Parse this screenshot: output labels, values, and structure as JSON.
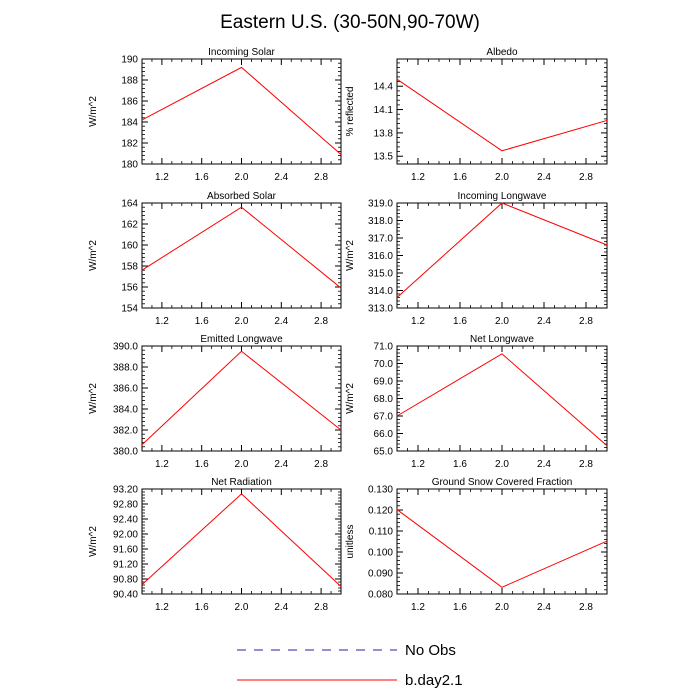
{
  "figure": {
    "title": "Eastern U.S. (30-50N,90-70W)"
  },
  "legend": {
    "items": [
      {
        "label": "No Obs",
        "color": "#2222aa",
        "dash": true
      },
      {
        "label": "b.day2.1",
        "color": "#ff0000",
        "dash": false
      }
    ]
  },
  "chart_data": [
    {
      "type": "line",
      "title": "Incoming Solar",
      "ylabel": "W/m^2",
      "xlabel": "",
      "xlim": [
        1,
        3
      ],
      "ylim": [
        180,
        190
      ],
      "x_ticks": [
        1.2,
        1.6,
        2.0,
        2.4,
        2.8
      ],
      "x_tick_labels": [
        "1.2",
        "1.6",
        "2.0",
        "2.4",
        "2.8"
      ],
      "y_ticks": [
        180,
        182,
        184,
        186,
        188,
        190
      ],
      "y_tick_labels": [
        "180",
        "182",
        "184",
        "186",
        "188",
        "190"
      ],
      "series": [
        {
          "x": [
            1,
            2,
            3
          ],
          "y": [
            184.2,
            189.2,
            180.9
          ],
          "color": "#ff0000"
        }
      ]
    },
    {
      "type": "line",
      "title": "Albedo",
      "ylabel": "% reflected",
      "xlabel": "",
      "xlim": [
        1,
        3
      ],
      "ylim": [
        13.4,
        14.75
      ],
      "x_ticks": [
        1.2,
        1.6,
        2.0,
        2.4,
        2.8
      ],
      "x_tick_labels": [
        "1.2",
        "1.6",
        "2.0",
        "2.4",
        "2.8"
      ],
      "y_ticks": [
        13.5,
        13.8,
        14.1,
        14.4
      ],
      "y_tick_labels": [
        "13.5",
        "13.8",
        "14.1",
        "14.4"
      ],
      "series": [
        {
          "x": [
            1,
            2,
            3
          ],
          "y": [
            14.49,
            13.57,
            13.96
          ],
          "color": "#ff0000"
        }
      ]
    },
    {
      "type": "line",
      "title": "Absorbed Solar",
      "ylabel": "W/m^2",
      "xlabel": "",
      "xlim": [
        1,
        3
      ],
      "ylim": [
        154,
        164
      ],
      "x_ticks": [
        1.2,
        1.6,
        2.0,
        2.4,
        2.8
      ],
      "x_tick_labels": [
        "1.2",
        "1.6",
        "2.0",
        "2.4",
        "2.8"
      ],
      "y_ticks": [
        154,
        156,
        158,
        160,
        162,
        164
      ],
      "y_tick_labels": [
        "154",
        "156",
        "158",
        "160",
        "162",
        "164"
      ],
      "series": [
        {
          "x": [
            1,
            2,
            3
          ],
          "y": [
            157.6,
            163.6,
            155.9
          ],
          "color": "#ff0000"
        }
      ]
    },
    {
      "type": "line",
      "title": "Incoming Longwave",
      "ylabel": "W/m^2",
      "xlabel": "",
      "xlim": [
        1,
        3
      ],
      "ylim": [
        313,
        319
      ],
      "x_ticks": [
        1.2,
        1.6,
        2.0,
        2.4,
        2.8
      ],
      "x_tick_labels": [
        "1.2",
        "1.6",
        "2.0",
        "2.4",
        "2.8"
      ],
      "y_ticks": [
        313,
        314,
        315,
        316,
        317,
        318,
        319
      ],
      "y_tick_labels": [
        "313.0",
        "314.0",
        "315.0",
        "316.0",
        "317.0",
        "318.0",
        "319.0"
      ],
      "series": [
        {
          "x": [
            1,
            2,
            3
          ],
          "y": [
            313.6,
            319.0,
            316.6
          ],
          "color": "#ff0000"
        }
      ]
    },
    {
      "type": "line",
      "title": "Emitted Longwave",
      "ylabel": "W/m^2",
      "xlabel": "",
      "xlim": [
        1,
        3
      ],
      "ylim": [
        380,
        390
      ],
      "x_ticks": [
        1.2,
        1.6,
        2.0,
        2.4,
        2.8
      ],
      "x_tick_labels": [
        "1.2",
        "1.6",
        "2.0",
        "2.4",
        "2.8"
      ],
      "y_ticks": [
        380,
        382,
        384,
        386,
        388,
        390
      ],
      "y_tick_labels": [
        "380.0",
        "382.0",
        "384.0",
        "386.0",
        "388.0",
        "390.0"
      ],
      "series": [
        {
          "x": [
            1,
            2,
            3
          ],
          "y": [
            380.6,
            389.5,
            382.0
          ],
          "color": "#ff0000"
        }
      ]
    },
    {
      "type": "line",
      "title": "Net Longwave",
      "ylabel": "W/m^2",
      "xlabel": "",
      "xlim": [
        1,
        3
      ],
      "ylim": [
        65,
        71
      ],
      "x_ticks": [
        1.2,
        1.6,
        2.0,
        2.4,
        2.8
      ],
      "x_tick_labels": [
        "1.2",
        "1.6",
        "2.0",
        "2.4",
        "2.8"
      ],
      "y_ticks": [
        65,
        66,
        67,
        68,
        69,
        70,
        71
      ],
      "y_tick_labels": [
        "65.0",
        "66.0",
        "67.0",
        "68.0",
        "69.0",
        "70.0",
        "71.0"
      ],
      "series": [
        {
          "x": [
            1,
            2,
            3
          ],
          "y": [
            67.0,
            70.55,
            65.3
          ],
          "color": "#ff0000"
        }
      ]
    },
    {
      "type": "line",
      "title": "Net Radiation",
      "ylabel": "W/m^2",
      "xlabel": "",
      "xlim": [
        1,
        3
      ],
      "ylim": [
        90.4,
        93.2
      ],
      "x_ticks": [
        1.2,
        1.6,
        2.0,
        2.4,
        2.8
      ],
      "x_tick_labels": [
        "1.2",
        "1.6",
        "2.0",
        "2.4",
        "2.8"
      ],
      "y_ticks": [
        90.4,
        90.8,
        91.2,
        91.6,
        92.0,
        92.4,
        92.8,
        93.2
      ],
      "y_tick_labels": [
        "90.40",
        "90.80",
        "91.20",
        "91.60",
        "92.00",
        "92.40",
        "92.80",
        "93.20"
      ],
      "series": [
        {
          "x": [
            1,
            2,
            3
          ],
          "y": [
            90.65,
            93.07,
            90.6
          ],
          "color": "#ff0000"
        }
      ]
    },
    {
      "type": "line",
      "title": "Ground Snow Covered Fraction",
      "ylabel": "unitless",
      "xlabel": "",
      "xlim": [
        1,
        3
      ],
      "ylim": [
        0.08,
        0.13
      ],
      "x_ticks": [
        1.2,
        1.6,
        2.0,
        2.4,
        2.8
      ],
      "x_tick_labels": [
        "1.2",
        "1.6",
        "2.0",
        "2.4",
        "2.8"
      ],
      "y_ticks": [
        0.08,
        0.09,
        0.1,
        0.11,
        0.12,
        0.13
      ],
      "y_tick_labels": [
        "0.080",
        "0.090",
        "0.100",
        "0.110",
        "0.120",
        "0.130"
      ],
      "series": [
        {
          "x": [
            1,
            2,
            3
          ],
          "y": [
            0.1202,
            0.0832,
            0.1052
          ],
          "color": "#ff0000"
        }
      ]
    }
  ]
}
